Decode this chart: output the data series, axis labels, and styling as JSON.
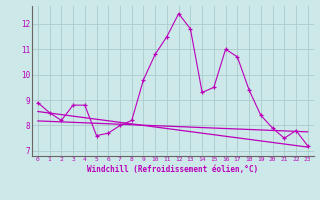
{
  "xlabel": "Windchill (Refroidissement éolien,°C)",
  "bg_color": "#cce8e8",
  "grid_color": "#aacccc",
  "line_color": "#bb00bb",
  "x_ticks": [
    0,
    1,
    2,
    3,
    4,
    5,
    6,
    7,
    8,
    9,
    10,
    11,
    12,
    13,
    14,
    15,
    16,
    17,
    18,
    19,
    20,
    21,
    22,
    23
  ],
  "ylim": [
    6.8,
    12.7
  ],
  "yticks": [
    7,
    8,
    9,
    10,
    11,
    12
  ],
  "line_main": [
    8.9,
    8.5,
    8.2,
    8.8,
    8.8,
    7.6,
    7.7,
    8.0,
    8.2,
    9.8,
    10.8,
    11.5,
    12.4,
    11.8,
    9.3,
    9.5,
    11.0,
    10.7,
    9.4,
    8.4,
    7.9,
    7.5,
    7.8,
    7.2
  ],
  "line_trend": [
    [
      0,
      23
    ],
    [
      8.55,
      7.15
    ]
  ],
  "line_flat": [
    [
      0,
      23
    ],
    [
      8.18,
      7.75
    ]
  ]
}
